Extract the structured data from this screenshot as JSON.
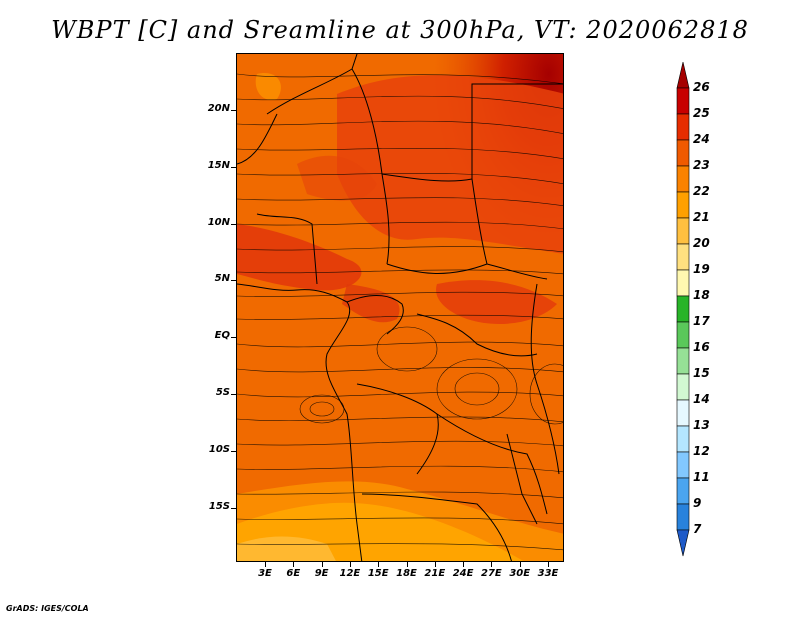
{
  "title": "WBPT [C] and Sreamline at 300hPa, VT: 2020062818",
  "credit": "GrADS: IGES/COLA",
  "map": {
    "y_labels": [
      "20N",
      "15N",
      "10N",
      "5N",
      "EQ",
      "5S",
      "10S",
      "15S"
    ],
    "x_labels": [
      "3E",
      "6E",
      "9E",
      "12E",
      "15E",
      "18E",
      "21E",
      "24E",
      "27E",
      "30E",
      "33E"
    ],
    "lat_range": [
      -19,
      24
    ],
    "lon_range": [
      0,
      35
    ]
  },
  "colorbar": {
    "labels": [
      "26",
      "25",
      "24",
      "23",
      "22",
      "21",
      "20",
      "19",
      "18",
      "17",
      "16",
      "15",
      "14",
      "13",
      "12",
      "11",
      "9",
      "7"
    ],
    "colors": [
      "#a50000",
      "#c80000",
      "#e62d00",
      "#f05a00",
      "#fa8200",
      "#ffa000",
      "#ffc040",
      "#ffe080",
      "#fff8b0",
      "#28b428",
      "#5ac85a",
      "#96e096",
      "#d2f8d2",
      "#e6f8ff",
      "#b4e6ff",
      "#82c8ff",
      "#4ba5f0",
      "#2882dc",
      "#1e5ac8"
    ]
  }
}
